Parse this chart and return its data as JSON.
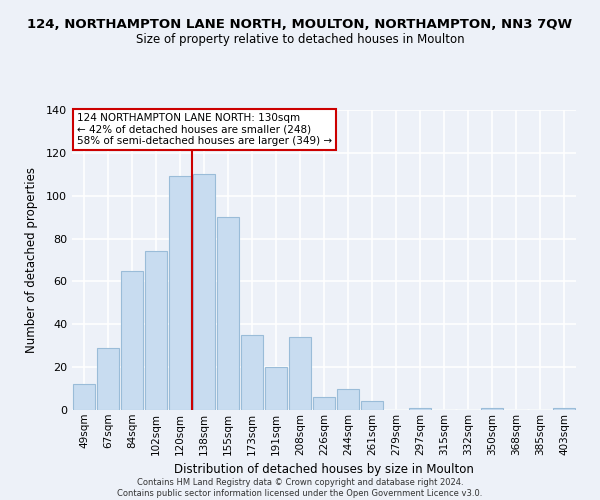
{
  "title": "124, NORTHAMPTON LANE NORTH, MOULTON, NORTHAMPTON, NN3 7QW",
  "subtitle": "Size of property relative to detached houses in Moulton",
  "xlabel": "Distribution of detached houses by size in Moulton",
  "ylabel": "Number of detached properties",
  "footer_line1": "Contains HM Land Registry data © Crown copyright and database right 2024.",
  "footer_line2": "Contains public sector information licensed under the Open Government Licence v3.0.",
  "bar_labels": [
    "49sqm",
    "67sqm",
    "84sqm",
    "102sqm",
    "120sqm",
    "138sqm",
    "155sqm",
    "173sqm",
    "191sqm",
    "208sqm",
    "226sqm",
    "244sqm",
    "261sqm",
    "279sqm",
    "297sqm",
    "315sqm",
    "332sqm",
    "350sqm",
    "368sqm",
    "385sqm",
    "403sqm"
  ],
  "bar_values": [
    12,
    29,
    65,
    74,
    109,
    110,
    90,
    35,
    20,
    34,
    6,
    10,
    4,
    0,
    1,
    0,
    0,
    1,
    0,
    0,
    1
  ],
  "bar_color": "#c8dcf0",
  "bar_edge_color": "#9abcd8",
  "annotation_title": "124 NORTHAMPTON LANE NORTH: 130sqm",
  "annotation_line1": "← 42% of detached houses are smaller (248)",
  "annotation_line2": "58% of semi-detached houses are larger (349) →",
  "reference_line_x": 4.5,
  "reference_line_color": "#cc0000",
  "ylim": [
    0,
    140
  ],
  "yticks": [
    0,
    20,
    40,
    60,
    80,
    100,
    120,
    140
  ],
  "background_color": "#edf1f8",
  "plot_bg_color": "#edf1f8",
  "grid_color": "white",
  "annotation_box_color": "white",
  "annotation_box_edge": "#cc0000"
}
